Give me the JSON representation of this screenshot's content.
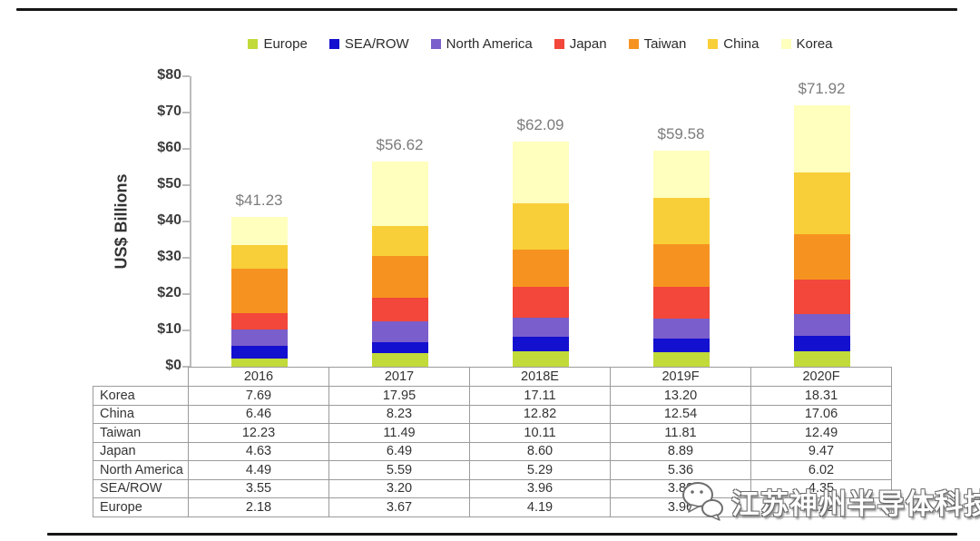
{
  "chart_data": {
    "type": "bar",
    "stacked": true,
    "ylabel": "US$ Billions",
    "ylim": [
      0,
      80
    ],
    "ytick_step": 10,
    "ytick_labels": [
      "$0",
      "$10",
      "$20",
      "$30",
      "$40",
      "$50",
      "$60",
      "$70",
      "$80"
    ],
    "grid": "off",
    "legend_position": "top",
    "categories": [
      "2016",
      "2017",
      "2018E",
      "2019F",
      "2020F"
    ],
    "series": [
      {
        "name": "Europe",
        "color": "#c2da3a",
        "values": [
          2.18,
          3.67,
          4.19,
          3.96,
          4.22
        ]
      },
      {
        "name": "SEA/ROW",
        "color": "#1410cf",
        "values": [
          3.55,
          3.2,
          3.96,
          3.82,
          4.35
        ]
      },
      {
        "name": "North America",
        "color": "#7a5ecb",
        "values": [
          4.49,
          5.59,
          5.29,
          5.36,
          6.02
        ]
      },
      {
        "name": "Japan",
        "color": "#f2473a",
        "values": [
          4.63,
          6.49,
          8.6,
          8.89,
          9.47
        ]
      },
      {
        "name": "Taiwan",
        "color": "#f69320",
        "values": [
          12.23,
          11.49,
          10.11,
          11.81,
          12.49
        ]
      },
      {
        "name": "China",
        "color": "#f8cf38",
        "values": [
          6.46,
          8.23,
          12.82,
          12.54,
          17.06
        ]
      },
      {
        "name": "Korea",
        "color": "#ffffbe",
        "values": [
          7.69,
          17.95,
          17.11,
          13.2,
          18.31
        ]
      }
    ],
    "totals": [
      "$41.23",
      "$56.62",
      "$62.09",
      "$59.58",
      "$71.92"
    ],
    "total_label_color": "#7c7c7c",
    "table_row_order": [
      "Korea",
      "China",
      "Taiwan",
      "Japan",
      "North America",
      "SEA/ROW",
      "Europe"
    ]
  },
  "watermark": {
    "icon": "wechat-icon",
    "text": "江苏神州半导体科技"
  }
}
